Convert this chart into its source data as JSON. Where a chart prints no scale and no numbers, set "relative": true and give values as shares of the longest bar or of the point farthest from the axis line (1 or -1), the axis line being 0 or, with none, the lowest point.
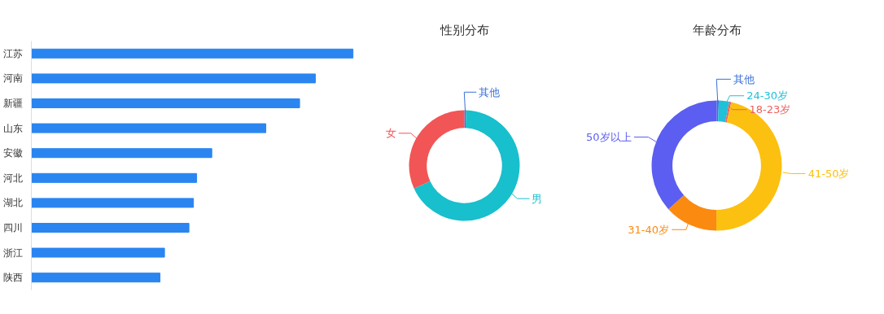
{
  "chart_data": [
    {
      "type": "bar",
      "orientation": "horizontal",
      "relative": true,
      "color": "#2a85f0",
      "grid": false,
      "categories": [
        "江苏",
        "河南",
        "新疆",
        "山东",
        "安徽",
        "河北",
        "湖北",
        "四川",
        "浙江",
        "陕西"
      ],
      "values": [
        1,
        0.883,
        0.834,
        0.729,
        0.561,
        0.514,
        0.504,
        0.49,
        0.414,
        0.4
      ]
    },
    {
      "type": "donut",
      "title": "性别分布",
      "categories": [
        "其他",
        "男",
        "女"
      ],
      "values": [
        0.5,
        67.7,
        31.8
      ],
      "colors": [
        "#3a6fd8",
        "#18bfcc",
        "#f25555"
      ]
    },
    {
      "type": "donut",
      "title": "年龄分布",
      "categories": [
        "其他",
        "24-30岁",
        "18-23岁",
        "41-50岁",
        "31-40岁",
        "50岁以上"
      ],
      "values": [
        0.5,
        2.6,
        0.5,
        46.5,
        13.2,
        36.7
      ],
      "colors": [
        "#3a6fd8",
        "#20c0d8",
        "#f06060",
        "#fcc010",
        "#fb8a10",
        "#5b5ef0"
      ]
    }
  ]
}
